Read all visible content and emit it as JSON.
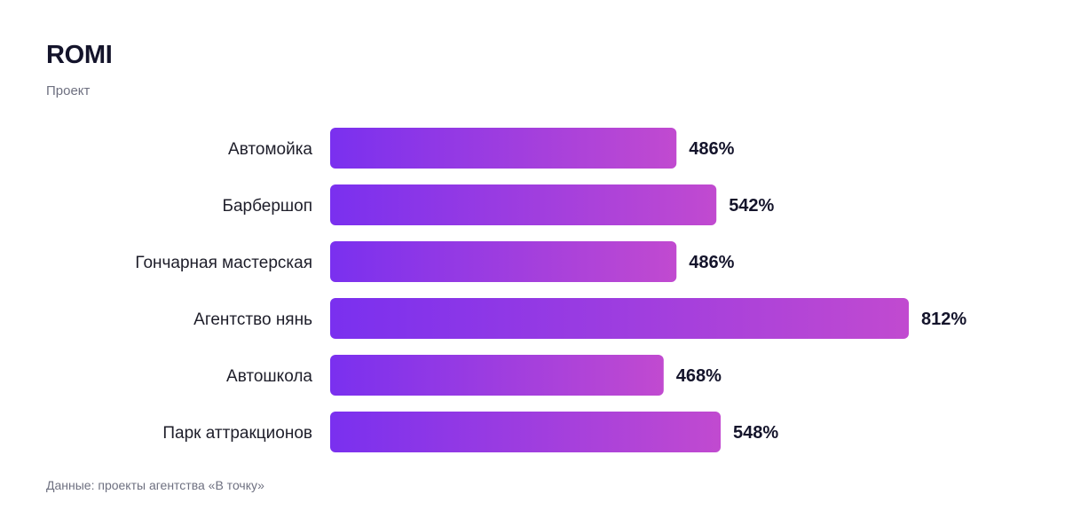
{
  "header": {
    "title": "ROMI",
    "subtitle": "Проект"
  },
  "footer": {
    "source": "Данные: проекты агентства «В точку»"
  },
  "colors": {
    "bar_start": "#7a30ef",
    "bar_end": "#c14ad0"
  },
  "chart_data": {
    "type": "bar",
    "orientation": "horizontal",
    "title": "ROMI",
    "subtitle": "Проект",
    "categories": [
      "Автомойка",
      "Барбершоп",
      "Гончарная мастерская",
      "Агентство нянь",
      "Автошкола",
      "Парк аттракционов"
    ],
    "values": [
      486,
      542,
      486,
      812,
      468,
      548
    ],
    "value_labels": [
      "486%",
      "542%",
      "486%",
      "812%",
      "468%",
      "548%"
    ],
    "unit": "%",
    "xlim": [
      0,
      812
    ],
    "grid": false,
    "legend": "none"
  }
}
